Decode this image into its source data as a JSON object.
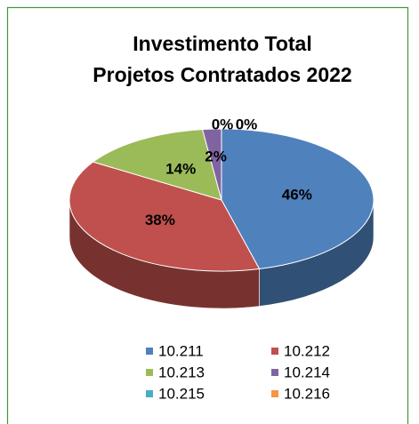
{
  "chart_data": {
    "type": "pie",
    "title": [
      "Investimento Total",
      "Projetos Contratados 2022"
    ],
    "categories": [
      "10.211",
      "10.212",
      "10.213",
      "10.214",
      "10.215",
      "10.216"
    ],
    "values": [
      46,
      38,
      14,
      2,
      0,
      0
    ],
    "value_labels": [
      "46%",
      "38%",
      "14%",
      "2%",
      "0%",
      "0%"
    ],
    "colors": [
      "#4f81bd",
      "#c0504d",
      "#9bbb59",
      "#8064a2",
      "#4bacc6",
      "#f79646"
    ],
    "legend": "bottom"
  }
}
